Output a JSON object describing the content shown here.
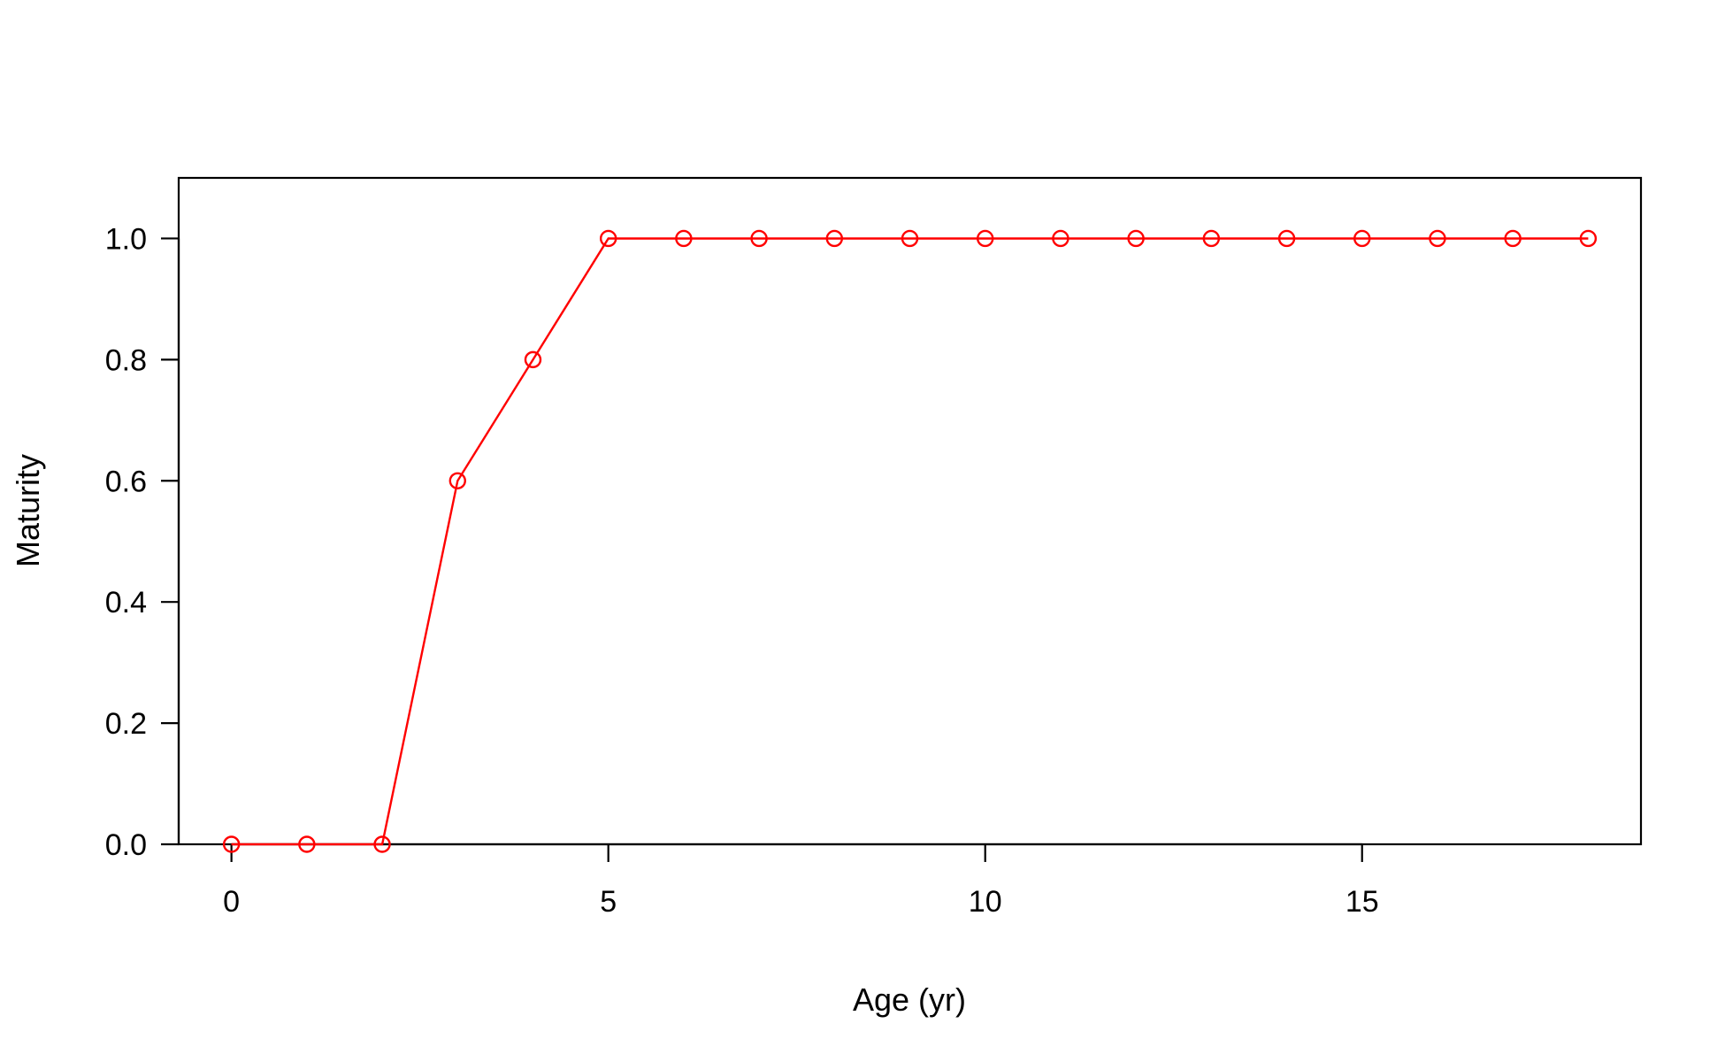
{
  "chart_data": {
    "type": "line",
    "title": "",
    "xlabel": "Age (yr)",
    "ylabel": "Maturity",
    "xlim": [
      -0.7,
      18.7
    ],
    "ylim": [
      0,
      1.1
    ],
    "x_ticks": [
      0,
      5,
      10,
      15
    ],
    "y_ticks": [
      0.0,
      0.2,
      0.4,
      0.6,
      0.8,
      1.0
    ],
    "x_tick_labels": [
      "0",
      "5",
      "10",
      "15"
    ],
    "y_tick_labels": [
      "0.0",
      "0.2",
      "0.4",
      "0.6",
      "0.8",
      "1.0"
    ],
    "grid": false,
    "legend": "none",
    "series": [
      {
        "color": "#ff0000",
        "marker": "open-circle",
        "x": [
          0,
          1,
          2,
          3,
          4,
          5,
          6,
          7,
          8,
          9,
          10,
          11,
          12,
          13,
          14,
          15,
          16,
          17,
          18
        ],
        "y": [
          0,
          0,
          0,
          0.6,
          0.8,
          1,
          1,
          1,
          1,
          1,
          1,
          1,
          1,
          1,
          1,
          1,
          1,
          1,
          1
        ]
      }
    ]
  }
}
